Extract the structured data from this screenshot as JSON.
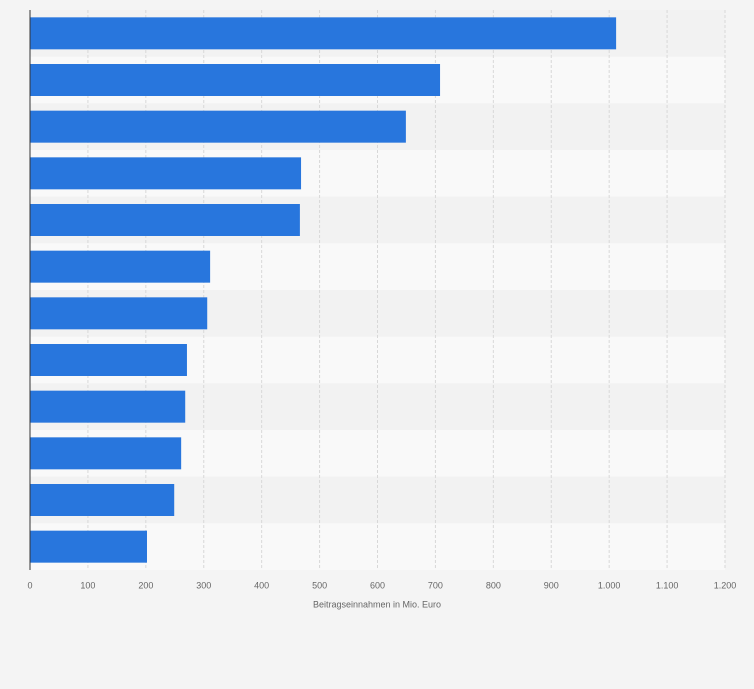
{
  "chart_data": {
    "type": "hbar",
    "categories": [
      null,
      null,
      null,
      null,
      null,
      null,
      null,
      null,
      null,
      null,
      null,
      null
    ],
    "values": [
      1012,
      708,
      649,
      468,
      466,
      311,
      306,
      271,
      268,
      261,
      249,
      202
    ],
    "color": "#2876dd",
    "xlabel": "Beitragseinnahmen in Mio. Euro",
    "xlim": [
      0,
      1200
    ],
    "xticks": [
      0,
      100,
      200,
      300,
      400,
      500,
      600,
      700,
      800,
      900,
      {
        "value": 1000,
        "label": "1.000"
      },
      {
        "value": 1100,
        "label": "1.100"
      },
      {
        "value": 1200,
        "label": "1.200"
      }
    ],
    "grid": true
  }
}
